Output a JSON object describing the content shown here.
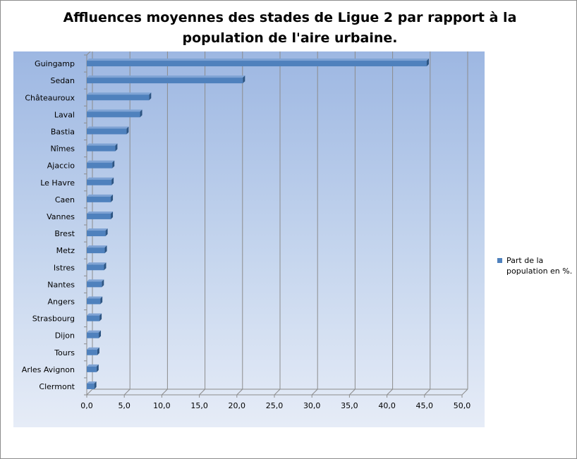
{
  "chart_data": {
    "type": "bar",
    "orientation": "horizontal",
    "title": "Affluences moyennes des stades de Ligue 2 par rapport à la population de l'aire urbaine.",
    "categories": [
      "Guingamp",
      "Sedan",
      "Châteauroux",
      "Laval",
      "Bastia",
      "Nîmes",
      "Ajaccio",
      "Le Havre",
      "Caen",
      "Vannes",
      "Brest",
      "Metz",
      "Istres",
      "Nantes",
      "Angers",
      "Strasbourg",
      "Dijon",
      "Tours",
      "Arles Avignon",
      "Clermont"
    ],
    "series": [
      {
        "name": "Part de la population en %.",
        "values": [
          45.3,
          20.8,
          8.3,
          7.1,
          5.3,
          3.8,
          3.4,
          3.3,
          3.2,
          3.2,
          2.5,
          2.4,
          2.3,
          2.0,
          1.8,
          1.7,
          1.6,
          1.4,
          1.3,
          1.0
        ],
        "color": "#4f81bd"
      }
    ],
    "xlim": [
      0,
      50
    ],
    "xticks": [
      "0,0",
      "5,0",
      "10,0",
      "15,0",
      "20,0",
      "25,0",
      "30,0",
      "35,0",
      "40,0",
      "45,0",
      "50,0"
    ],
    "grid": true,
    "legend_position": "right"
  }
}
